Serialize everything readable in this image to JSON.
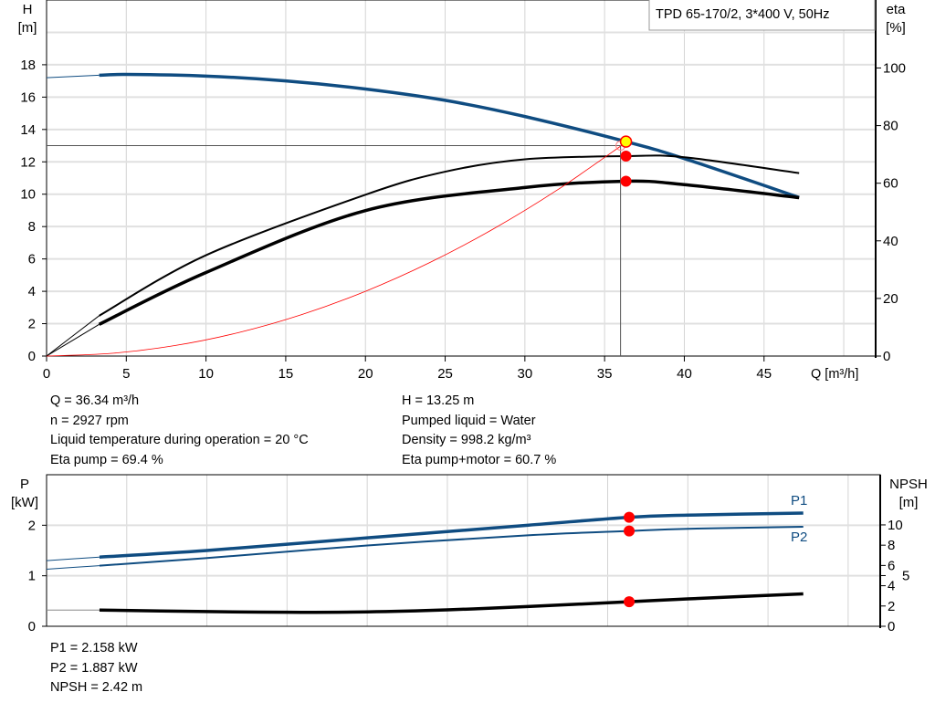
{
  "chart_data": [
    {
      "type": "line",
      "title": "TPD 65-170/2, 3*400 V, 50Hz",
      "xlabel": "Q [m³/h]",
      "ylabel": "H\n[m]",
      "y2label": "eta\n[%]",
      "xlim": [
        0,
        52
      ],
      "ylim": [
        0,
        22
      ],
      "y2lim": [
        0,
        123.6
      ],
      "xticks": [
        0,
        5,
        10,
        15,
        20,
        25,
        30,
        35,
        40,
        45
      ],
      "yticks": [
        0,
        2,
        4,
        6,
        8,
        10,
        12,
        14,
        16,
        18
      ],
      "y2ticks": [
        0,
        20,
        40,
        60,
        80,
        100
      ],
      "grid": true,
      "legend": "top-right",
      "series": [
        {
          "key": "H",
          "axis": "left",
          "color": "#0f4c81",
          "x": [
            0,
            3.3,
            5,
            10,
            15,
            20,
            25,
            30,
            36.34,
            40,
            47.2
          ],
          "y": [
            17.2,
            17.35,
            17.4,
            17.3,
            17.0,
            16.5,
            15.8,
            14.8,
            13.25,
            12.2,
            9.8
          ]
        },
        {
          "key": "eta pump",
          "axis": "right",
          "color": "#000000",
          "x": [
            0,
            3.3,
            10,
            20,
            25,
            30,
            36.34,
            40,
            47.2
          ],
          "y": [
            0,
            14,
            35,
            56,
            64,
            68.3,
            69.4,
            69,
            63.5
          ]
        },
        {
          "key": "eta pump+motor",
          "axis": "right",
          "color": "#000000",
          "x": [
            0,
            3.3,
            10,
            20,
            30,
            36.34,
            40,
            47.2
          ],
          "y": [
            0,
            11,
            29,
            50.5,
            58.5,
            60.7,
            59.5,
            55
          ]
        },
        {
          "key": "system curve",
          "axis": "left",
          "color": "#ff0000",
          "x": [
            0,
            4,
            8,
            12,
            16,
            20,
            24,
            28,
            32,
            36.34
          ],
          "y": [
            0,
            0.16,
            0.64,
            1.44,
            2.56,
            4.0,
            5.76,
            7.84,
            10.24,
            13.2
          ]
        }
      ],
      "operating_point": {
        "Q": 36.34,
        "H": 13.25,
        "eta_pump": 69.4,
        "eta_pump_motor": 60.7
      }
    },
    {
      "type": "line",
      "xlim": [
        0,
        52
      ],
      "ylim": [
        0,
        3
      ],
      "y2lim": [
        0,
        14.95
      ],
      "ylabel": "P\n[kW]",
      "y2label": "NPSH\n[m]",
      "yticks": [
        0,
        1,
        2
      ],
      "y2ticks": [
        0,
        2,
        4,
        5,
        6,
        8,
        10
      ],
      "grid": true,
      "series": [
        {
          "name": "P1",
          "axis": "left",
          "color": "#0f4c81",
          "x": [
            0,
            3.3,
            10,
            20,
            30,
            36.34,
            40,
            47.2
          ],
          "y": [
            1.3,
            1.37,
            1.5,
            1.75,
            2.0,
            2.158,
            2.2,
            2.24
          ]
        },
        {
          "name": "P2",
          "axis": "left",
          "color": "#0f4c81",
          "x": [
            0,
            3.3,
            10,
            20,
            30,
            36.34,
            40,
            47.2
          ],
          "y": [
            1.13,
            1.2,
            1.35,
            1.6,
            1.8,
            1.887,
            1.93,
            1.97
          ]
        },
        {
          "key": "NPSH",
          "axis": "right",
          "color": "#000000",
          "x": [
            0,
            3.3,
            10,
            15,
            20,
            25,
            30,
            36.34,
            40,
            47.2
          ],
          "y": [
            1.6,
            1.6,
            1.45,
            1.38,
            1.42,
            1.62,
            1.95,
            2.42,
            2.7,
            3.2
          ]
        }
      ],
      "operating_point": {
        "Q": 36.34,
        "P1": 2.158,
        "P2": 1.887,
        "NPSH": 2.42
      }
    }
  ],
  "info_top": {
    "left": [
      "Q = 36.34 m³/h",
      "n = 2927 rpm",
      "Liquid temperature during operation = 20 °C",
      "Eta pump = 69.4 %"
    ],
    "right": [
      "H = 13.25 m",
      "Pumped liquid = Water",
      "Density = 998.2 kg/m³",
      "Eta pump+motor = 60.7 %"
    ]
  },
  "info_bottom": [
    "P1 = 2.158 kW",
    "P2 = 1.887 kW",
    "NPSH = 2.42 m"
  ],
  "colors": {
    "head": "#0f4c81",
    "efficiency": "#000000",
    "system": "#ff0000",
    "point": "#ff0000",
    "duty_point": "#ffff00",
    "grid": "#d9d9d9"
  }
}
